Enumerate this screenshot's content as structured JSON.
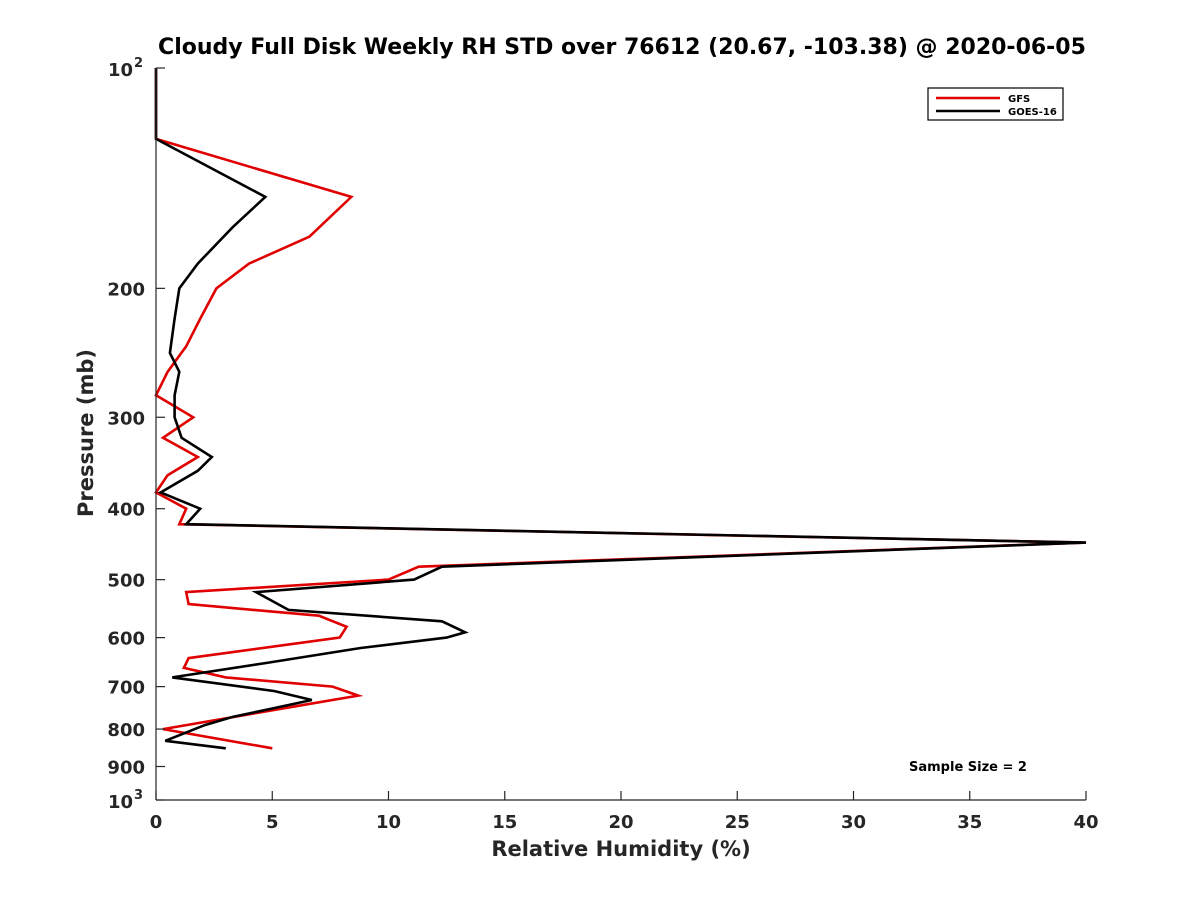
{
  "chart_data": {
    "type": "line",
    "title": "Cloudy Full Disk Weekly RH STD over 76612 (20.67, -103.38) @ 2020-06-05",
    "xlabel": "Relative Humidity (%)",
    "ylabel": "Pressure (mb)",
    "xlim": [
      0,
      40
    ],
    "ylim": [
      100,
      1000
    ],
    "yscale": "log",
    "y_reversed": true,
    "x_ticks": [
      0,
      5,
      10,
      15,
      20,
      25,
      30,
      35,
      40
    ],
    "x_tick_labels": [
      "0",
      "5",
      "10",
      "15",
      "20",
      "25",
      "30",
      "35",
      "40"
    ],
    "y_ticks": [
      {
        "value": 100,
        "base": "10",
        "exp": "2"
      },
      {
        "value": 200,
        "label": "200"
      },
      {
        "value": 300,
        "label": "300"
      },
      {
        "value": 400,
        "label": "400"
      },
      {
        "value": 500,
        "label": "500"
      },
      {
        "value": 600,
        "label": "600"
      },
      {
        "value": 700,
        "label": "700"
      },
      {
        "value": 800,
        "label": "800"
      },
      {
        "value": 900,
        "label": "900"
      },
      {
        "value": 1000,
        "base": "10",
        "exp": "3"
      }
    ],
    "legend": {
      "position": "top-right"
    },
    "annotation": "Sample Size = 2",
    "series": [
      {
        "name": "GFS",
        "color": "#e00000",
        "points": [
          [
            0,
            100
          ],
          [
            0,
            125
          ],
          [
            8.4,
            150
          ],
          [
            6.6,
            170
          ],
          [
            4.0,
            185
          ],
          [
            2.6,
            200
          ],
          [
            1.9,
            220
          ],
          [
            1.3,
            240
          ],
          [
            0.5,
            260
          ],
          [
            0,
            280
          ],
          [
            1.6,
            300
          ],
          [
            0.3,
            320
          ],
          [
            1.8,
            340
          ],
          [
            0.5,
            360
          ],
          [
            0,
            380
          ],
          [
            1.3,
            400
          ],
          [
            1.0,
            420
          ],
          [
            40,
            445
          ],
          [
            11.3,
            480
          ],
          [
            10.0,
            500
          ],
          [
            1.3,
            520
          ],
          [
            1.4,
            540
          ],
          [
            7.0,
            560
          ],
          [
            8.2,
            580
          ],
          [
            7.9,
            600
          ],
          [
            1.4,
            640
          ],
          [
            1.2,
            660
          ],
          [
            3.0,
            680
          ],
          [
            7.6,
            700
          ],
          [
            8.7,
            720
          ],
          [
            6.5,
            740
          ],
          [
            0.3,
            800
          ],
          [
            5.0,
            850
          ]
        ]
      },
      {
        "name": "GOES-16",
        "color": "#000000",
        "points": [
          [
            0,
            100
          ],
          [
            0,
            125
          ],
          [
            4.7,
            150
          ],
          [
            3.3,
            165
          ],
          [
            1.8,
            185
          ],
          [
            1.0,
            200
          ],
          [
            0.8,
            220
          ],
          [
            0.6,
            245
          ],
          [
            1.0,
            260
          ],
          [
            0.8,
            280
          ],
          [
            0.8,
            300
          ],
          [
            1.1,
            320
          ],
          [
            2.4,
            340
          ],
          [
            1.8,
            355
          ],
          [
            0.2,
            380
          ],
          [
            1.9,
            400
          ],
          [
            1.3,
            420
          ],
          [
            40,
            445
          ],
          [
            12.3,
            480
          ],
          [
            11.1,
            500
          ],
          [
            4.3,
            520
          ],
          [
            5.7,
            550
          ],
          [
            12.3,
            570
          ],
          [
            13.3,
            590
          ],
          [
            12.5,
            600
          ],
          [
            8.8,
            620
          ],
          [
            4.7,
            650
          ],
          [
            0.7,
            680
          ],
          [
            5.1,
            710
          ],
          [
            6.7,
            730
          ],
          [
            5.0,
            750
          ],
          [
            3.3,
            770
          ],
          [
            2.1,
            790
          ],
          [
            0.4,
            830
          ],
          [
            3.0,
            850
          ]
        ]
      }
    ]
  }
}
